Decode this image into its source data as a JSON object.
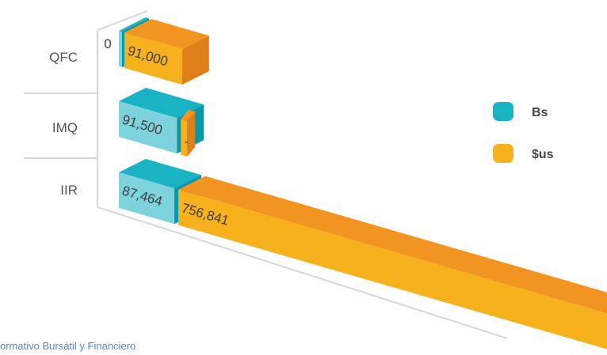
{
  "chart_data": {
    "type": "bar",
    "orientation": "horizontal",
    "style": "3d",
    "categories": [
      "QFC",
      "IMQ",
      "IIR"
    ],
    "series": [
      {
        "name": "Bs",
        "color": "#1ab3c4",
        "values": [
          0,
          91500,
          87464
        ],
        "labels": [
          "0",
          "91,500",
          "87,464"
        ]
      },
      {
        "name": "$us",
        "color": "#f7b11c",
        "values": [
          91000,
          null,
          756841
        ],
        "labels": [
          "91,000",
          "-",
          "756,841"
        ]
      }
    ],
    "legend_position": "right",
    "grid": false
  },
  "footer": "ormativo Bursátil y Financiero",
  "colors": {
    "bs_front": "#7dd3dc",
    "bs_top": "#1ab3c4",
    "bs_side": "#0e95a4",
    "usd_front": "#f7b11c",
    "usd_top": "#f29422",
    "usd_side": "#de7f1a",
    "axis": "#d6d6d6"
  }
}
